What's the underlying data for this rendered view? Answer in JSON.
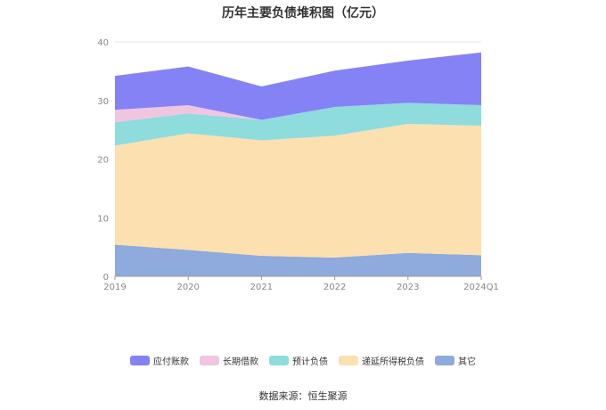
{
  "title": "历年主要负债堆积图（亿元）",
  "source_label": "数据来源：恒生聚源",
  "chart_data": {
    "type": "area",
    "stacked": true,
    "title": "历年主要负债堆积图（亿元）",
    "categories": [
      "2019",
      "2020",
      "2021",
      "2022",
      "2023",
      "2024Q1"
    ],
    "ylim": [
      0,
      40
    ],
    "yticks": [
      0,
      10,
      20,
      30,
      40
    ],
    "grid": true,
    "legend_position": "bottom",
    "series": [
      {
        "name": "其它",
        "color": "#8faadc",
        "values": [
          5.4,
          4.5,
          3.5,
          3.2,
          4.0,
          3.6
        ]
      },
      {
        "name": "递延所得税负债",
        "color": "#fde0b0",
        "values": [
          16.9,
          19.9,
          19.7,
          20.8,
          22.0,
          22.1
        ]
      },
      {
        "name": "预计负债",
        "color": "#8edcdc",
        "values": [
          4.0,
          3.4,
          3.5,
          4.9,
          3.6,
          3.5
        ]
      },
      {
        "name": "长期借款",
        "color": "#f0c5e0",
        "values": [
          2.1,
          1.4,
          0.0,
          0.0,
          0.0,
          0.0
        ]
      },
      {
        "name": "应付账款",
        "color": "#8482f5",
        "values": [
          5.8,
          6.6,
          5.7,
          6.2,
          7.2,
          9.0
        ]
      }
    ],
    "legend_order": [
      "应付账款",
      "长期借款",
      "预计负债",
      "递延所得税负债",
      "其它"
    ]
  }
}
